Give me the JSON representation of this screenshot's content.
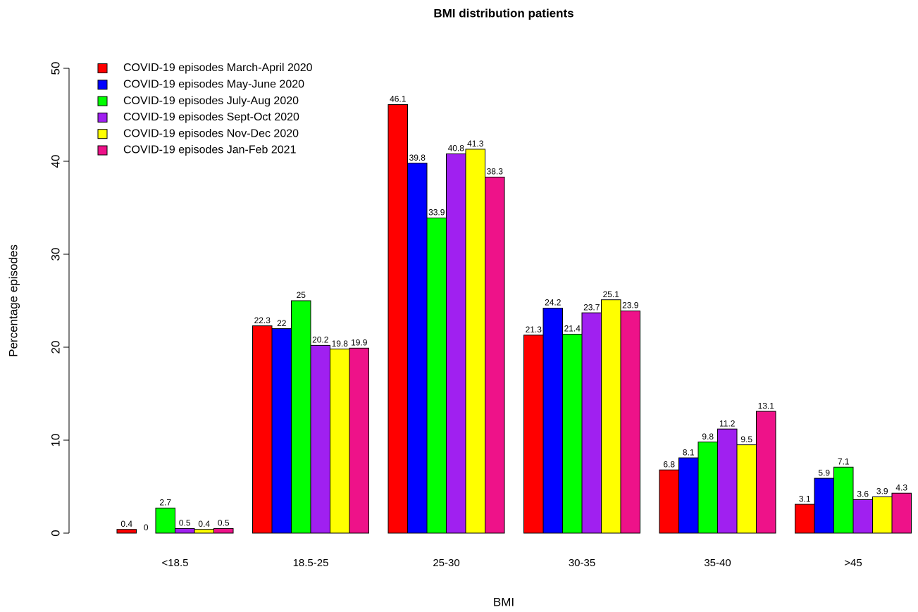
{
  "chart_data": {
    "type": "bar",
    "title": "BMI distribution patients",
    "x_label": "BMI",
    "y_label": "Percentage episodes",
    "categories": [
      "<18.5",
      "18.5-25",
      "25-30",
      "30-35",
      "35-40",
      ">45"
    ],
    "series": [
      {
        "name": "COVID-19 episodes March-April 2020",
        "color": "#ff0000",
        "values": [
          0.4,
          22.3,
          46.1,
          21.3,
          6.8,
          3.1
        ]
      },
      {
        "name": "COVID-19 episodes May-June 2020",
        "color": "#0000ff",
        "values": [
          0,
          22,
          39.8,
          24.2,
          8.1,
          5.9
        ]
      },
      {
        "name": "COVID-19 episodes July-Aug 2020",
        "color": "#00ff00",
        "values": [
          2.7,
          25,
          33.9,
          21.4,
          9.8,
          7.1
        ]
      },
      {
        "name": "COVID-19 episodes Sept-Oct 2020",
        "color": "#a020f0",
        "values": [
          0.5,
          20.2,
          40.8,
          23.7,
          11.2,
          3.6
        ]
      },
      {
        "name": "COVID-19 episodes Nov-Dec 2020",
        "color": "#ffff00",
        "values": [
          0.4,
          19.8,
          41.3,
          25.1,
          9.5,
          3.9
        ]
      },
      {
        "name": "COVID-19 episodes Jan-Feb 2021",
        "color": "#ee1289",
        "values": [
          0.5,
          19.9,
          38.3,
          23.9,
          13.1,
          4.3
        ]
      }
    ],
    "ylim": [
      0,
      50
    ],
    "yticks": [
      0,
      10,
      20,
      30,
      40,
      50
    ],
    "legend": "top-left"
  }
}
